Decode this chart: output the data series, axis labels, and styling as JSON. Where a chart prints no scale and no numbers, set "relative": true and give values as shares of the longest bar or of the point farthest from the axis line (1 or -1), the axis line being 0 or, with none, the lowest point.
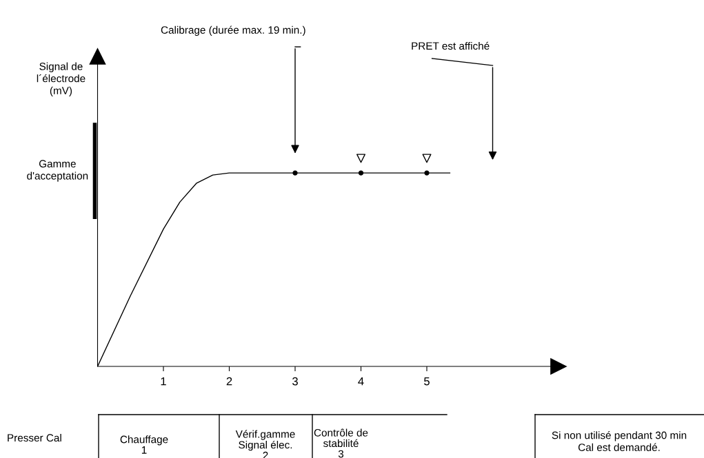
{
  "chart_data": {
    "type": "line",
    "title": "Calibrage (durée max. 19 min.)",
    "relative": true,
    "xlim": [
      0,
      7
    ],
    "xticks": [
      1,
      2,
      3,
      4,
      5
    ],
    "tick_labels": "x",
    "grid": false,
    "legend": false,
    "series": [
      {
        "color": "#000000",
        "marker": "none",
        "x": [
          0,
          0.5,
          1,
          1.25,
          1.5,
          1.75,
          2,
          3,
          4,
          5,
          5.35
        ],
        "values": [
          0,
          0.34,
          0.66,
          0.79,
          0.88,
          0.92,
          0.93,
          0.93,
          0.93,
          0.93,
          0.93
        ]
      },
      {
        "type": "scatter",
        "color": "#000000",
        "marker": "circle",
        "x": [
          3,
          4,
          5
        ],
        "values": [
          0.93,
          0.93,
          0.93
        ]
      },
      {
        "type": "scatter",
        "color": "#000000",
        "marker": "triangle",
        "x": [
          4,
          5
        ],
        "values": [
          1,
          1
        ]
      }
    ],
    "annotations": [
      "PRET est affiché",
      "Gamme\nd'acceptation",
      "Signal de\nl´électrode\n(mV)",
      "Presser Cal",
      "Chauffage\n1",
      "Vérif.gamme\nSignal élec.\n2",
      "Contrôle de\nstabilité\n3",
      "Si non utilisé pendant 30 min\nCal est demandé."
    ]
  }
}
